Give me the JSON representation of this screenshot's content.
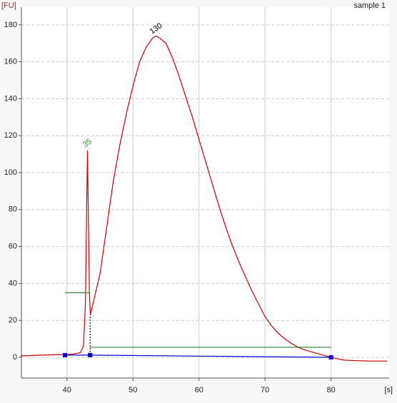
{
  "chart_data": {
    "type": "line",
    "title": "sample 1",
    "ylabel": "[FU]",
    "xlabel": "[s]",
    "xlim": [
      33.1,
      88.8
    ],
    "ylim": [
      -11.2,
      189.6
    ],
    "xticks": [
      40,
      50,
      60,
      70,
      80
    ],
    "yticks": [
      0,
      20,
      40,
      60,
      80,
      100,
      120,
      140,
      160,
      180
    ],
    "grid": true,
    "series": [
      {
        "color": "#cc0000",
        "x": [
          33,
          35,
          37,
          39,
          40,
          41,
          42,
          42.5,
          42.8,
          43.0,
          43.1,
          43.25,
          43.4,
          43.55,
          44,
          45,
          46,
          47,
          48,
          49,
          50,
          51,
          52,
          53,
          53.5,
          54,
          55,
          56,
          57,
          58,
          59,
          60,
          61,
          62,
          63,
          64,
          65,
          66,
          67,
          68,
          69,
          70,
          71,
          72,
          73,
          74,
          75,
          76,
          77,
          78,
          79,
          80,
          81,
          82,
          84,
          86,
          88.5
        ],
        "values": [
          0.8,
          1,
          1.3,
          1.5,
          1.5,
          1.8,
          2.5,
          6,
          30,
          85,
          112,
          75,
          35,
          23,
          30,
          45,
          70,
          95,
          115,
          132,
          147,
          160,
          168,
          173,
          174,
          173,
          170,
          162,
          152,
          141,
          130,
          118,
          106,
          94,
          82,
          71,
          61,
          52,
          44,
          36,
          29,
          22,
          17,
          13,
          10,
          7.5,
          5.5,
          4,
          3,
          2,
          1,
          0,
          -0.8,
          -1.5,
          -1.8,
          -2,
          -2
        ]
      },
      {
        "color": "#0000cc",
        "markers": true,
        "x": [
          39.7,
          43.5,
          80
        ],
        "values": [
          1.2,
          1.2,
          0
        ]
      },
      {
        "color": "#2e7d32",
        "x": [
          39.7,
          43.5
        ],
        "values": [
          35,
          35
        ]
      },
      {
        "color": "#2e7d32",
        "x": [
          43.5,
          80
        ],
        "values": [
          5.5,
          5.5
        ]
      },
      {
        "color": "#000000",
        "dashed": true,
        "x": [
          43.5,
          43.5
        ],
        "values": [
          1.2,
          23
        ]
      }
    ],
    "annotations": [
      {
        "text": "35",
        "x": 43.1,
        "y": 112,
        "color": "#2e8b2e"
      },
      {
        "text": "130",
        "x": 53.5,
        "y": 174,
        "color": "#000000"
      }
    ]
  }
}
